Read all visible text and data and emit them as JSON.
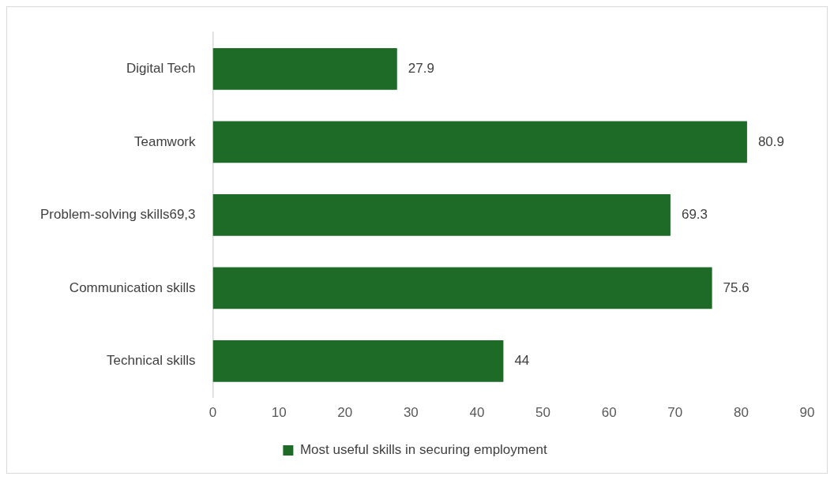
{
  "chart_data": {
    "type": "bar",
    "orientation": "horizontal",
    "categories": [
      "Digital Tech",
      "Teamwork",
      "Problem-solving skills69,3",
      "Communication skills",
      "Technical skills"
    ],
    "series": [
      {
        "name": "Most useful skills in securing employment",
        "color": "#1e6b28",
        "values": [
          27.9,
          80.9,
          69.3,
          75.6,
          44
        ]
      }
    ],
    "xlim": [
      0,
      90
    ],
    "xticks": [
      0,
      10,
      20,
      30,
      40,
      50,
      60,
      70,
      80,
      90
    ],
    "data_labels": true,
    "legend": "bottom"
  }
}
